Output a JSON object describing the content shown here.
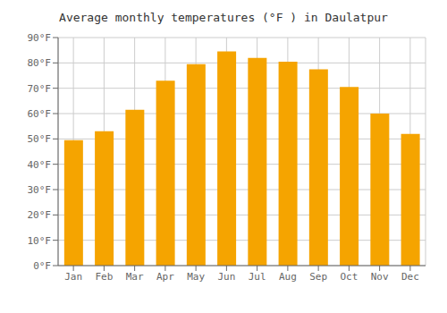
{
  "chart_data": {
    "type": "bar",
    "title": "Average monthly temperatures (°F ) in Daulatpur",
    "categories": [
      "Jan",
      "Feb",
      "Mar",
      "Apr",
      "May",
      "Jun",
      "Jul",
      "Aug",
      "Sep",
      "Oct",
      "Nov",
      "Dec"
    ],
    "values": [
      49.5,
      53,
      61.5,
      73,
      79.5,
      84.5,
      82,
      80.5,
      77.5,
      70.5,
      60,
      52
    ],
    "color": "#F5A400",
    "ylim": [
      0,
      90
    ],
    "yticks": [
      {
        "value": 0,
        "label": "0°F"
      },
      {
        "value": 10,
        "label": "10°F"
      },
      {
        "value": 20,
        "label": "20°F"
      },
      {
        "value": 30,
        "label": "30°F"
      },
      {
        "value": 40,
        "label": "40°F"
      },
      {
        "value": 50,
        "label": "50°F"
      },
      {
        "value": 60,
        "label": "60°F"
      },
      {
        "value": 70,
        "label": "70°F"
      },
      {
        "value": 80,
        "label": "80°F"
      },
      {
        "value": 90,
        "label": "90°F"
      }
    ],
    "grid": true
  }
}
